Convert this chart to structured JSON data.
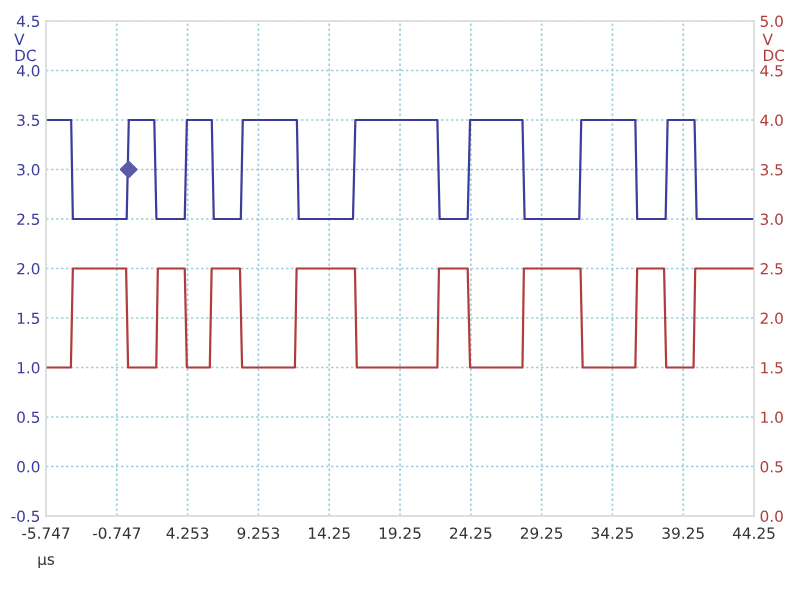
{
  "chart_data": {
    "type": "line",
    "xlabel": "µs",
    "ylabel": "V\nDC",
    "y2label": "V\nDC",
    "xlim": [
      -5.747,
      44.25
    ],
    "xticks": [
      -5.747,
      -0.747,
      4.253,
      9.253,
      {
        "value": 14.253,
        "label": "14.25"
      },
      {
        "value": 19.253,
        "label": "19.25"
      },
      {
        "value": 24.253,
        "label": "24.25"
      },
      {
        "value": 29.253,
        "label": "29.25"
      },
      {
        "value": 34.253,
        "label": "34.25"
      },
      {
        "value": 39.253,
        "label": "39.25"
      },
      44.25
    ],
    "ylim": [
      -0.5,
      4.5
    ],
    "yticks": [
      -0.5,
      {
        "value": 0,
        "label": "0.0"
      },
      0.5,
      {
        "value": 1,
        "label": "1.0"
      },
      1.5,
      {
        "value": 2,
        "label": "2.0"
      },
      2.5,
      {
        "value": 3,
        "label": "3.0"
      },
      3.5,
      {
        "value": 4,
        "label": "4.0"
      },
      4.5
    ],
    "y2lim": [
      0.0,
      5.0
    ],
    "y2ticks": [
      {
        "value": 0,
        "label": "0.0"
      },
      0.5,
      {
        "value": 1,
        "label": "1.0"
      },
      1.5,
      {
        "value": 2,
        "label": "2.0"
      },
      2.5,
      {
        "value": 3,
        "label": "3.0"
      },
      3.5,
      {
        "value": 4,
        "label": "4.0"
      },
      4.5,
      {
        "value": 5,
        "label": "5.0"
      }
    ],
    "grid": true,
    "series": [
      {
        "color": "#3c3c9c",
        "x": [
          -5.747,
          -3.97,
          -3.85,
          -0.05,
          0.1,
          1.9,
          2.05,
          4.05,
          4.2,
          5.96,
          6.1,
          8.01,
          8.15,
          11.97,
          12.1,
          15.93,
          16.1,
          21.89,
          22.05,
          24.03,
          24.2,
          27.9,
          28.05,
          31.91,
          32.05,
          35.87,
          36.0,
          38.01,
          38.15,
          40.05,
          40.2,
          44.25
        ],
        "values": [
          3.5,
          3.5,
          2.5,
          2.5,
          3.5,
          3.5,
          2.5,
          2.5,
          3.5,
          3.5,
          2.5,
          2.5,
          3.5,
          3.5,
          2.5,
          2.5,
          3.5,
          3.5,
          2.5,
          2.5,
          3.5,
          3.5,
          2.5,
          2.5,
          3.5,
          3.5,
          2.5,
          2.5,
          3.5,
          3.5,
          2.5,
          2.5
        ]
      },
      {
        "color": "#b03c3c",
        "axis": "y2",
        "x": [
          -5.747,
          -3.99,
          -3.85,
          -0.09,
          0.05,
          2.04,
          2.15,
          4.05,
          4.2,
          5.82,
          5.95,
          7.95,
          8.1,
          11.83,
          11.95,
          16.07,
          16.2,
          21.89,
          22.0,
          24.03,
          24.2,
          27.9,
          28.0,
          32.0,
          32.15,
          35.87,
          36.0,
          37.9,
          38.05,
          39.98,
          40.1,
          44.25
        ],
        "values": [
          1.5,
          1.5,
          2.5,
          2.5,
          1.5,
          1.5,
          2.5,
          2.5,
          1.5,
          1.5,
          2.5,
          2.5,
          1.5,
          1.5,
          2.5,
          2.5,
          1.5,
          1.5,
          2.5,
          2.5,
          1.5,
          1.5,
          2.5,
          2.5,
          1.5,
          1.5,
          2.5,
          2.5,
          1.5,
          1.5,
          2.5,
          2.5
        ]
      },
      {
        "type": "scatter",
        "color": "#5a5aa8",
        "marker": "diamond",
        "x": [
          0.09
        ],
        "values": [
          3.0
        ]
      }
    ]
  }
}
